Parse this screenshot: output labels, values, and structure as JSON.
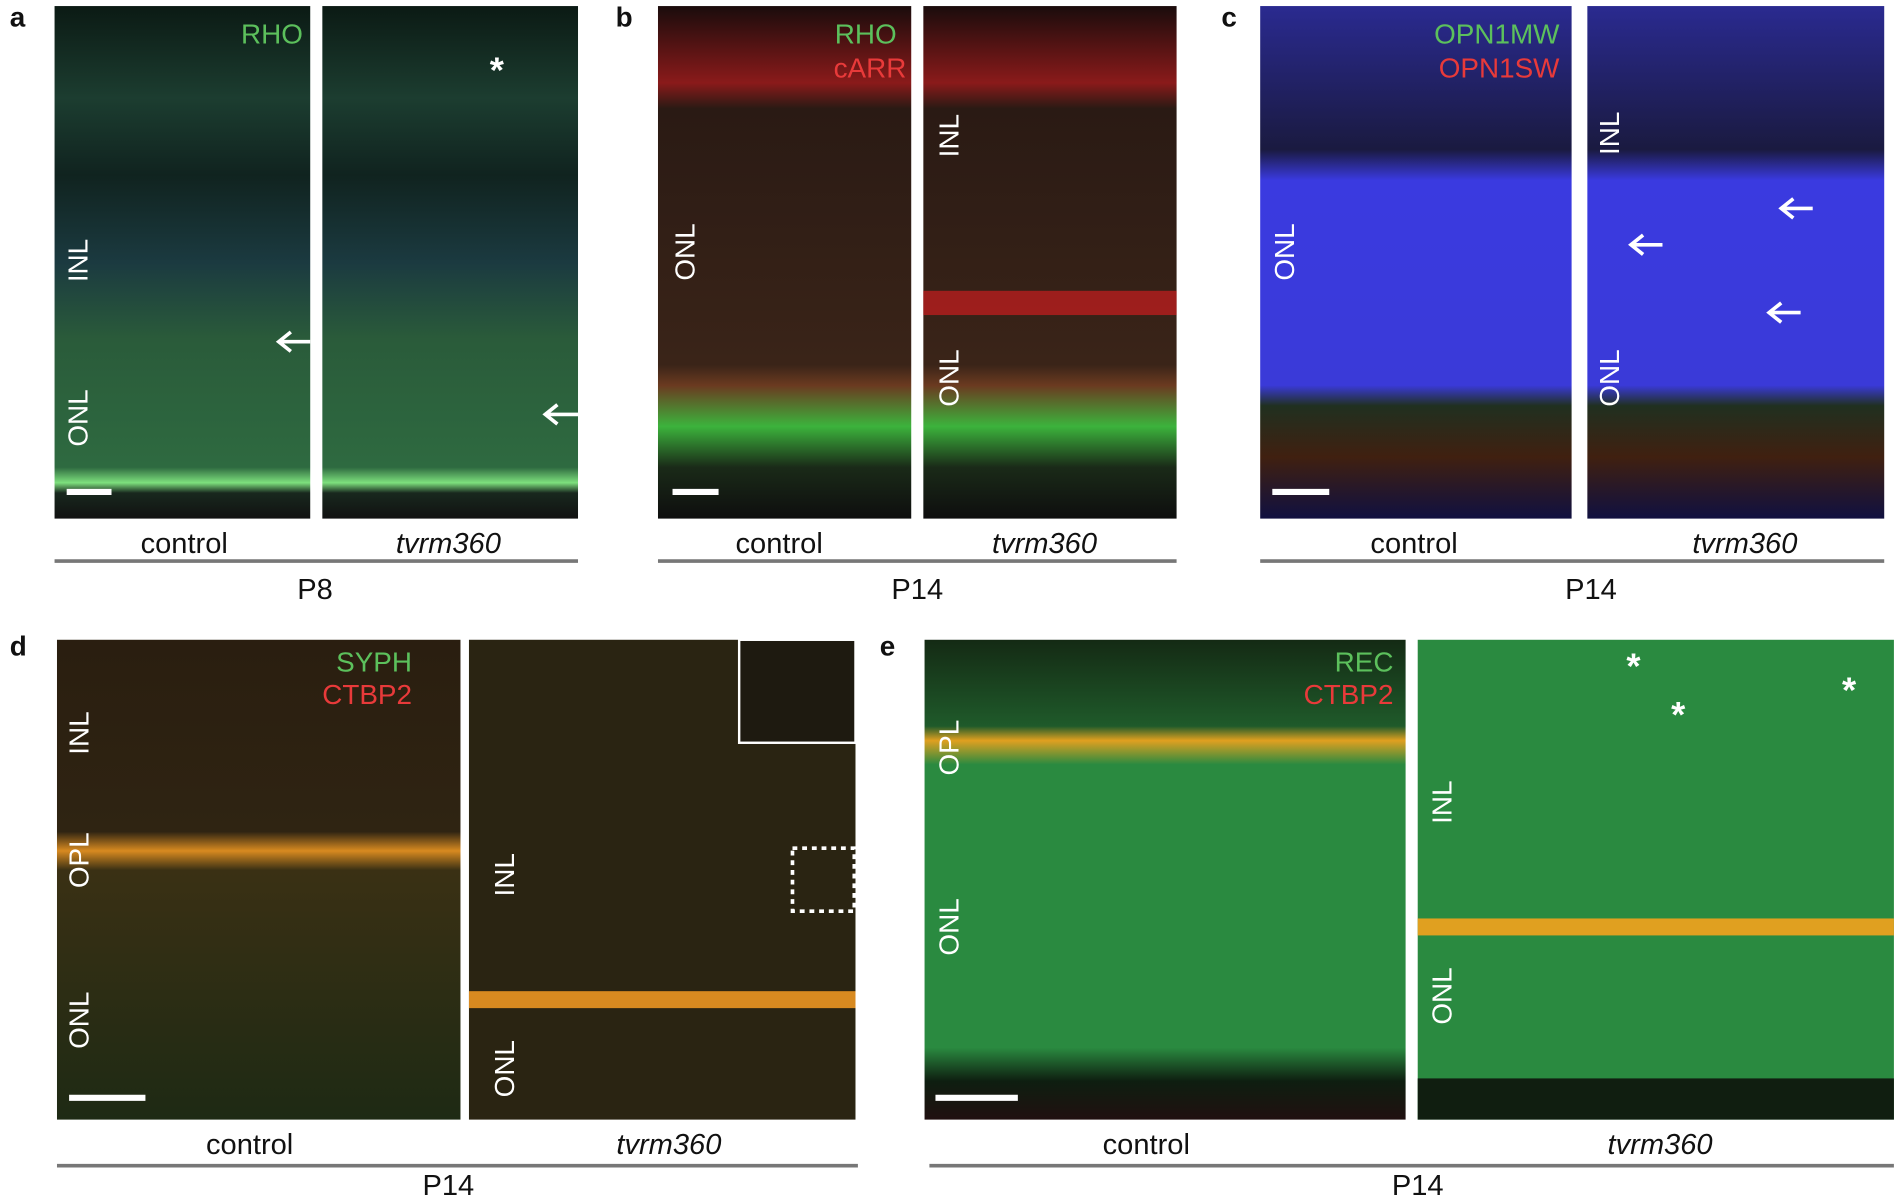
{
  "panels": [
    {
      "letter": "a",
      "markers": [
        "RHO"
      ],
      "control_layers": [
        "INL",
        "ONL"
      ],
      "asterisks": [
        "*"
      ],
      "conditions": [
        "control",
        "tvrm360"
      ],
      "age": "P8"
    },
    {
      "letter": "b",
      "markers": [
        "RHO",
        "cARR"
      ],
      "control_layers": [
        "ONL"
      ],
      "mutant_layers": [
        "INL",
        "ONL"
      ],
      "conditions": [
        "control",
        "tvrm360"
      ],
      "age": "P14"
    },
    {
      "letter": "c",
      "markers": [
        "OPN1MW",
        "OPN1SW"
      ],
      "control_layers": [
        "ONL"
      ],
      "mutant_layers": [
        "INL",
        "ONL"
      ],
      "conditions": [
        "control",
        "tvrm360"
      ],
      "age": "P14"
    },
    {
      "letter": "d",
      "markers": [
        "SYPH",
        "CTBP2"
      ],
      "control_layers": [
        "INL",
        "OPL",
        "ONL"
      ],
      "mutant_layers": [
        "INL",
        "ONL"
      ],
      "conditions": [
        "control",
        "tvrm360"
      ],
      "age": "P14"
    },
    {
      "letter": "e",
      "markers": [
        "REC",
        "CTBP2"
      ],
      "control_layers": [
        "OPL",
        "ONL"
      ],
      "mutant_layers": [
        "INL",
        "ONL"
      ],
      "asterisks": [
        "*",
        "*",
        "*"
      ],
      "conditions": [
        "control",
        "tvrm360"
      ],
      "age": "P14"
    }
  ]
}
